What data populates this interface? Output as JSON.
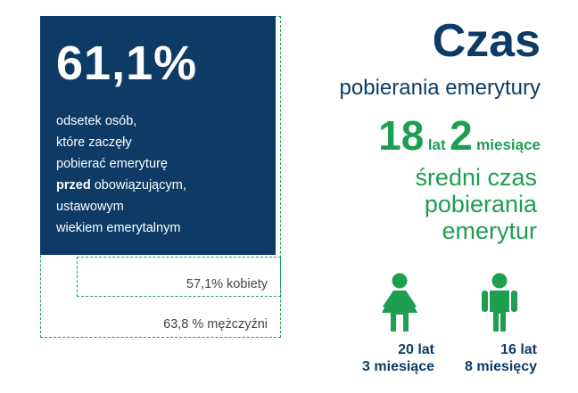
{
  "left_panel": {
    "percent": "61,1%",
    "desc_line1": "odsetek osób,",
    "desc_line2": "które zaczęły",
    "desc_line3": "pobierać emeryturę",
    "desc_bold": "przed",
    "desc_line4_rest": " obowiązującym,",
    "desc_line5": "ustawowym",
    "desc_line6": "wiekiem emerytalnym",
    "women_stat": "57,1% kobiety",
    "men_stat": "63,8 % mężczyźni"
  },
  "right_panel": {
    "title": "Czas",
    "subtitle": "pobierania emerytury",
    "years_num": "18",
    "years_unit": "lat",
    "months_num": "2",
    "months_unit": "miesiące",
    "avg_line1": "średni czas",
    "avg_line2": "pobierania",
    "avg_line3": "emerytur",
    "female_line1": "20 lat",
    "female_line2": "3 miesiące",
    "male_line1": "16 lat",
    "male_line2": "8 miesięcy"
  },
  "colors": {
    "navy": "#0d3b66",
    "green": "#1e9e50"
  },
  "icons": [
    "female-person-icon",
    "male-person-icon"
  ]
}
